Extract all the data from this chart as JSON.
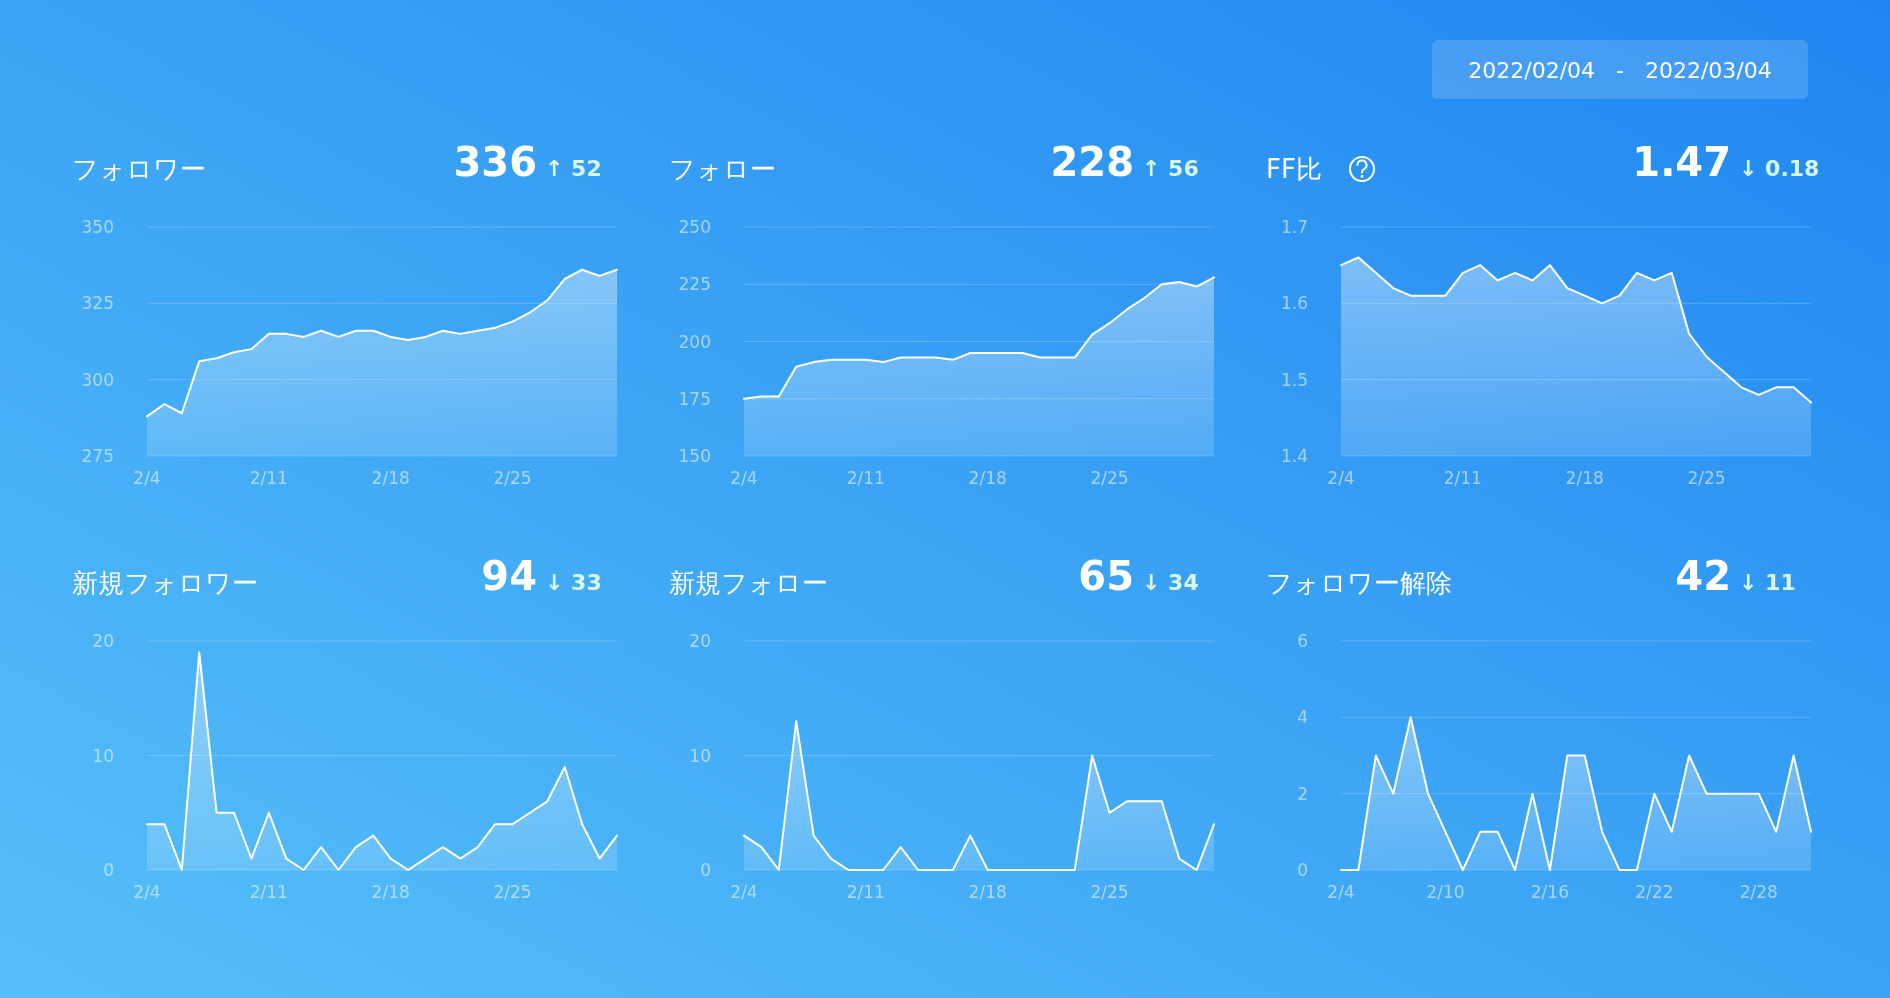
{
  "chart_data": [
    {
      "type": "area",
      "title": "フォロワー",
      "annotations": [
        "336",
        "↑ 52",
        "2022/02/04   -   2022/03/04"
      ],
      "x": [
        "2022-02-04",
        "2022-02-05",
        "2022-02-06",
        "2022-02-07",
        "2022-02-08",
        "2022-02-09",
        "2022-02-10",
        "2022-02-11",
        "2022-02-12",
        "2022-02-13",
        "2022-02-14",
        "2022-02-15",
        "2022-02-16",
        "2022-02-17",
        "2022-02-18",
        "2022-02-19",
        "2022-02-20",
        "2022-02-21",
        "2022-02-22",
        "2022-02-23",
        "2022-02-24",
        "2022-02-25",
        "2022-02-26",
        "2022-02-27",
        "2022-02-28",
        "2022-03-01",
        "2022-03-02",
        "2022-03-03"
      ],
      "series": [
        {
          "color": "#ffffff",
          "values": [
            288,
            292,
            289,
            306,
            307,
            309,
            310,
            315,
            315,
            314,
            316,
            314,
            316,
            316,
            314,
            313,
            314,
            316,
            315,
            316,
            317,
            319,
            322,
            326,
            333,
            336,
            334,
            336
          ]
        }
      ],
      "ylim": [
        275,
        350
      ],
      "yticks": [
        275,
        300,
        325,
        350
      ],
      "xlim": [
        "2022-02-04",
        "2022-03-03"
      ],
      "xticks": [
        {
          "value": "2022-02-04",
          "label": "2/4"
        },
        {
          "value": "2022-02-11",
          "label": "2/11"
        },
        {
          "value": "2022-02-18",
          "label": "2/18"
        },
        {
          "value": "2022-02-25",
          "label": "2/25"
        }
      ],
      "grid": "y"
    },
    {
      "type": "area",
      "title": "フォロー",
      "annotations": [
        "228",
        "↑ 56"
      ],
      "x": [
        "2022-02-04",
        "2022-02-05",
        "2022-02-06",
        "2022-02-07",
        "2022-02-08",
        "2022-02-09",
        "2022-02-10",
        "2022-02-11",
        "2022-02-12",
        "2022-02-13",
        "2022-02-14",
        "2022-02-15",
        "2022-02-16",
        "2022-02-17",
        "2022-02-18",
        "2022-02-19",
        "2022-02-20",
        "2022-02-21",
        "2022-02-22",
        "2022-02-23",
        "2022-02-24",
        "2022-02-25",
        "2022-02-26",
        "2022-02-27",
        "2022-02-28",
        "2022-03-01",
        "2022-03-02",
        "2022-03-03"
      ],
      "series": [
        {
          "color": "#ffffff",
          "values": [
            175,
            176,
            176,
            189,
            191,
            192,
            192,
            192,
            191,
            193,
            193,
            193,
            192,
            195,
            195,
            195,
            195,
            193,
            193,
            193,
            203,
            208,
            214,
            219,
            225,
            226,
            224,
            228
          ]
        }
      ],
      "ylim": [
        150,
        250
      ],
      "yticks": [
        150,
        175,
        200,
        225,
        250
      ],
      "xlim": [
        "2022-02-04",
        "2022-03-03"
      ],
      "xticks": [
        {
          "value": "2022-02-04",
          "label": "2/4"
        },
        {
          "value": "2022-02-11",
          "label": "2/11"
        },
        {
          "value": "2022-02-18",
          "label": "2/18"
        },
        {
          "value": "2022-02-25",
          "label": "2/25"
        }
      ],
      "grid": "y"
    },
    {
      "type": "area",
      "title": "FF比",
      "annotations": [
        "1.47",
        "↓ 0.18"
      ],
      "x": [
        "2022-02-04",
        "2022-02-05",
        "2022-02-06",
        "2022-02-07",
        "2022-02-08",
        "2022-02-09",
        "2022-02-10",
        "2022-02-11",
        "2022-02-12",
        "2022-02-13",
        "2022-02-14",
        "2022-02-15",
        "2022-02-16",
        "2022-02-17",
        "2022-02-18",
        "2022-02-19",
        "2022-02-20",
        "2022-02-21",
        "2022-02-22",
        "2022-02-23",
        "2022-02-24",
        "2022-02-25",
        "2022-02-26",
        "2022-02-27",
        "2022-02-28",
        "2022-03-01",
        "2022-03-02",
        "2022-03-03"
      ],
      "series": [
        {
          "color": "#ffffff",
          "values": [
            1.65,
            1.66,
            1.64,
            1.62,
            1.61,
            1.61,
            1.61,
            1.64,
            1.65,
            1.63,
            1.64,
            1.63,
            1.65,
            1.62,
            1.61,
            1.6,
            1.61,
            1.64,
            1.63,
            1.64,
            1.56,
            1.53,
            1.51,
            1.49,
            1.48,
            1.49,
            1.49,
            1.47
          ]
        }
      ],
      "ylim": [
        1.4,
        1.7
      ],
      "yticks": [
        1.4,
        1.5,
        1.6,
        1.7
      ],
      "xlim": [
        "2022-02-04",
        "2022-03-03"
      ],
      "xticks": [
        {
          "value": "2022-02-04",
          "label": "2/4"
        },
        {
          "value": "2022-02-11",
          "label": "2/11"
        },
        {
          "value": "2022-02-18",
          "label": "2/18"
        },
        {
          "value": "2022-02-25",
          "label": "2/25"
        }
      ],
      "grid": "y"
    },
    {
      "type": "area",
      "title": "新規フォロワー",
      "annotations": [
        "94",
        "↓ 33"
      ],
      "x": [
        "2022-02-04",
        "2022-02-05",
        "2022-02-06",
        "2022-02-07",
        "2022-02-08",
        "2022-02-09",
        "2022-02-10",
        "2022-02-11",
        "2022-02-12",
        "2022-02-13",
        "2022-02-14",
        "2022-02-15",
        "2022-02-16",
        "2022-02-17",
        "2022-02-18",
        "2022-02-19",
        "2022-02-20",
        "2022-02-21",
        "2022-02-22",
        "2022-02-23",
        "2022-02-24",
        "2022-02-25",
        "2022-02-26",
        "2022-02-27",
        "2022-02-28",
        "2022-03-01",
        "2022-03-02",
        "2022-03-03"
      ],
      "series": [
        {
          "color": "#ffffff",
          "values": [
            4,
            4,
            0,
            19,
            5,
            5,
            1,
            5,
            1,
            0,
            2,
            0,
            2,
            3,
            1,
            0,
            1,
            2,
            1,
            2,
            4,
            4,
            5,
            6,
            9,
            4,
            1,
            3
          ]
        }
      ],
      "ylim": [
        0,
        20
      ],
      "yticks": [
        0,
        10,
        20
      ],
      "xlim": [
        "2022-02-04",
        "2022-03-03"
      ],
      "xticks": [
        {
          "value": "2022-02-04",
          "label": "2/4"
        },
        {
          "value": "2022-02-11",
          "label": "2/11"
        },
        {
          "value": "2022-02-18",
          "label": "2/18"
        },
        {
          "value": "2022-02-25",
          "label": "2/25"
        }
      ],
      "grid": "y"
    },
    {
      "type": "area",
      "title": "新規フォロー",
      "annotations": [
        "65",
        "↓ 34"
      ],
      "x": [
        "2022-02-04",
        "2022-02-05",
        "2022-02-06",
        "2022-02-07",
        "2022-02-08",
        "2022-02-09",
        "2022-02-10",
        "2022-02-11",
        "2022-02-12",
        "2022-02-13",
        "2022-02-14",
        "2022-02-15",
        "2022-02-16",
        "2022-02-17",
        "2022-02-18",
        "2022-02-19",
        "2022-02-20",
        "2022-02-21",
        "2022-02-22",
        "2022-02-23",
        "2022-02-24",
        "2022-02-25",
        "2022-02-26",
        "2022-02-27",
        "2022-02-28",
        "2022-03-01",
        "2022-03-02",
        "2022-03-03"
      ],
      "series": [
        {
          "color": "#ffffff",
          "values": [
            3,
            2,
            0,
            13,
            3,
            1,
            0,
            0,
            0,
            2,
            0,
            0,
            0,
            3,
            0,
            0,
            0,
            0,
            0,
            0,
            10,
            5,
            6,
            6,
            6,
            1,
            0,
            4
          ]
        }
      ],
      "ylim": [
        0,
        20
      ],
      "yticks": [
        0,
        10,
        20
      ],
      "xlim": [
        "2022-02-04",
        "2022-03-03"
      ],
      "xticks": [
        {
          "value": "2022-02-04",
          "label": "2/4"
        },
        {
          "value": "2022-02-11",
          "label": "2/11"
        },
        {
          "value": "2022-02-18",
          "label": "2/18"
        },
        {
          "value": "2022-02-25",
          "label": "2/25"
        }
      ],
      "grid": "y"
    },
    {
      "type": "area",
      "title": "フォロワー解除",
      "annotations": [
        "42",
        "↓ 11"
      ],
      "x": [
        "2022-02-04",
        "2022-02-05",
        "2022-02-06",
        "2022-02-07",
        "2022-02-08",
        "2022-02-09",
        "2022-02-10",
        "2022-02-11",
        "2022-02-12",
        "2022-02-13",
        "2022-02-14",
        "2022-02-15",
        "2022-02-16",
        "2022-02-17",
        "2022-02-18",
        "2022-02-19",
        "2022-02-20",
        "2022-02-21",
        "2022-02-22",
        "2022-02-23",
        "2022-02-24",
        "2022-02-25",
        "2022-02-26",
        "2022-02-27",
        "2022-02-28",
        "2022-03-01",
        "2022-03-02",
        "2022-03-03"
      ],
      "series": [
        {
          "color": "#ffffff",
          "values": [
            0,
            0,
            3,
            2,
            4,
            2,
            1,
            0,
            1,
            1,
            0,
            2,
            0,
            3,
            3,
            1,
            0,
            0,
            2,
            1,
            3,
            2,
            2,
            2,
            2,
            1,
            3,
            1
          ]
        }
      ],
      "ylim": [
        0,
        6
      ],
      "yticks": [
        0,
        2,
        4,
        6
      ],
      "xlim": [
        "2022-02-04",
        "2022-03-03"
      ],
      "xticks": [
        {
          "value": "2022-02-04",
          "label": "2/4"
        },
        {
          "value": "2022-02-10",
          "label": "2/10"
        },
        {
          "value": "2022-02-16",
          "label": "2/16"
        },
        {
          "value": "2022-02-22",
          "label": "2/22"
        },
        {
          "value": "2022-02-28",
          "label": "2/28"
        }
      ],
      "grid": "y"
    }
  ]
}
